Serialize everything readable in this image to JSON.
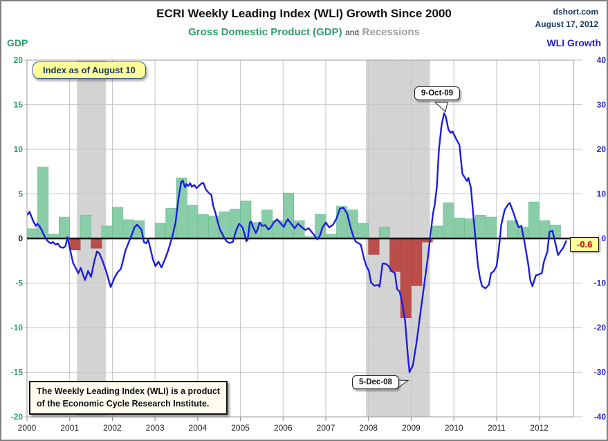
{
  "header": {
    "title": "ECRI Weekly Leading Index (WLI) Growth Since 2000",
    "source": "dshort.com",
    "date": "August 17, 2012",
    "subtitle_gdp": "Gross Domestic Product (GDP)",
    "subtitle_and": "and",
    "subtitle_recessions": "Recessions",
    "left_axis_title": "GDP",
    "right_axis_title": "WLI Growth"
  },
  "annotations": {
    "index_note": "Index as of August 10",
    "peak_label": "9-Oct-09",
    "trough_label": "5-Dec-08",
    "last_value_label": "-0.6",
    "footnote_line1": "The Weekly Leading Index (WLI) is a product",
    "footnote_line2": "of the Economic Cycle Research Institute."
  },
  "colors": {
    "gdp_text_green": "#2E9E68",
    "gdp_bar_green": "#7DC8A0",
    "gdp_bar_green_edge": "#69B890",
    "gdp_bar_red": "#C0504D",
    "gdp_bar_red_edge": "#A8423F",
    "wli_line_blue": "#1C1CE0",
    "wli_text_blue": "#2424CC",
    "navy_text": "#17375E",
    "recession_band": "#D6D6D6",
    "recession_band_dot": "#C9C9C9",
    "grid": "#C3C3C3",
    "zero_line": "#000000",
    "note_bg": "#FFFF99",
    "last_value_text": "#CC0000"
  },
  "chart_data": {
    "type": "bar+line (dual axis) with recession bands",
    "title": "ECRI Weekly Leading Index (WLI) Growth Since 2000",
    "x_range": [
      2000,
      2012.8
    ],
    "x_ticks": [
      2000,
      2001,
      2002,
      2003,
      2004,
      2005,
      2006,
      2007,
      2008,
      2009,
      2010,
      2011,
      2012
    ],
    "gdp_axis": {
      "label": "GDP",
      "min": -20,
      "max": 20,
      "ticks": [
        20,
        15,
        10,
        5,
        0,
        -5,
        -10,
        -15,
        -20
      ]
    },
    "wli_axis": {
      "label": "WLI Growth",
      "min": -40,
      "max": 40,
      "ticks": [
        40,
        30,
        20,
        10,
        0,
        -10,
        -20,
        -30,
        -40
      ]
    },
    "gdp_quarterly": {
      "start_year": 2000,
      "per_year": 4,
      "values": [
        1.1,
        8.0,
        0.5,
        2.4,
        -1.3,
        2.6,
        -1.1,
        1.4,
        3.5,
        2.1,
        2.0,
        0.1,
        1.7,
        3.4,
        6.8,
        3.7,
        2.7,
        2.5,
        3.0,
        3.3,
        4.2,
        1.8,
        3.2,
        2.0,
        5.1,
        2.0,
        0.2,
        2.7,
        0.5,
        3.6,
        3.2,
        1.7,
        -1.8,
        1.3,
        -3.7,
        -8.9,
        -5.3,
        -0.4,
        1.4,
        4.0,
        2.3,
        2.2,
        2.6,
        2.4,
        0.1,
        2.0,
        1.3,
        4.1,
        2.0,
        1.5
      ]
    },
    "recessions": [
      [
        2001.17,
        2001.85
      ],
      [
        2007.94,
        2009.44
      ]
    ],
    "wli_line": [
      [
        2000.02,
        5.4
      ],
      [
        2000.06,
        6.0
      ],
      [
        2000.1,
        5.0
      ],
      [
        2000.16,
        3.6
      ],
      [
        2000.21,
        2.8
      ],
      [
        2000.24,
        3.3
      ],
      [
        2000.29,
        2.8
      ],
      [
        2000.34,
        2.0
      ],
      [
        2000.4,
        0.7
      ],
      [
        2000.46,
        -0.3
      ],
      [
        2000.51,
        -0.8
      ],
      [
        2000.56,
        -1.1
      ],
      [
        2000.61,
        -0.8
      ],
      [
        2000.67,
        -1.4
      ],
      [
        2000.72,
        -1.1
      ],
      [
        2000.78,
        -1.9
      ],
      [
        2000.84,
        -2.1
      ],
      [
        2000.9,
        -1.8
      ],
      [
        2000.95,
        0.3
      ],
      [
        2001.02,
        -3.0
      ],
      [
        2001.08,
        -5.5
      ],
      [
        2001.16,
        -7.0
      ],
      [
        2001.2,
        -7.8
      ],
      [
        2001.26,
        -6.6
      ],
      [
        2001.31,
        -8.1
      ],
      [
        2001.36,
        -9.3
      ],
      [
        2001.43,
        -7.3
      ],
      [
        2001.5,
        -8.6
      ],
      [
        2001.58,
        -5.0
      ],
      [
        2001.64,
        -2.9
      ],
      [
        2001.7,
        -3.4
      ],
      [
        2001.78,
        -5.3
      ],
      [
        2001.86,
        -7.5
      ],
      [
        2001.96,
        -10.9
      ],
      [
        2002.06,
        -8.6
      ],
      [
        2002.13,
        -7.5
      ],
      [
        2002.2,
        -6.8
      ],
      [
        2002.31,
        -2.6
      ],
      [
        2002.42,
        0.0
      ],
      [
        2002.52,
        2.5
      ],
      [
        2002.58,
        3.1
      ],
      [
        2002.68,
        2.0
      ],
      [
        2002.74,
        -0.8
      ],
      [
        2002.79,
        -1.1
      ],
      [
        2002.84,
        -0.3
      ],
      [
        2002.95,
        -4.7
      ],
      [
        2003.01,
        -6.2
      ],
      [
        2003.08,
        -5.2
      ],
      [
        2003.15,
        -6.5
      ],
      [
        2003.23,
        -4.7
      ],
      [
        2003.31,
        -2.6
      ],
      [
        2003.4,
        0.2
      ],
      [
        2003.48,
        3.6
      ],
      [
        2003.55,
        9.0
      ],
      [
        2003.61,
        12.6
      ],
      [
        2003.65,
        13.0
      ],
      [
        2003.7,
        11.5
      ],
      [
        2003.74,
        12.2
      ],
      [
        2003.78,
        11.8
      ],
      [
        2003.82,
        12.4
      ],
      [
        2003.86,
        11.6
      ],
      [
        2003.92,
        12.0
      ],
      [
        2003.97,
        11.3
      ],
      [
        2004.03,
        11.8
      ],
      [
        2004.08,
        12.3
      ],
      [
        2004.13,
        12.5
      ],
      [
        2004.19,
        11.0
      ],
      [
        2004.26,
        10.2
      ],
      [
        2004.32,
        9.8
      ],
      [
        2004.36,
        7.4
      ],
      [
        2004.42,
        5.6
      ],
      [
        2004.47,
        3.6
      ],
      [
        2004.52,
        2.0
      ],
      [
        2004.57,
        1.1
      ],
      [
        2004.62,
        0.2
      ],
      [
        2004.67,
        -0.6
      ],
      [
        2004.74,
        -1.0
      ],
      [
        2004.82,
        -0.8
      ],
      [
        2004.9,
        1.8
      ],
      [
        2004.97,
        3.3
      ],
      [
        2005.05,
        2.5
      ],
      [
        2005.11,
        0.5
      ],
      [
        2005.14,
        -0.6
      ],
      [
        2005.17,
        -0.3
      ],
      [
        2005.22,
        3.6
      ],
      [
        2005.25,
        3.8
      ],
      [
        2005.3,
        2.5
      ],
      [
        2005.36,
        1.2
      ],
      [
        2005.4,
        2.0
      ],
      [
        2005.45,
        3.6
      ],
      [
        2005.51,
        2.8
      ],
      [
        2005.58,
        3.0
      ],
      [
        2005.66,
        2.0
      ],
      [
        2005.72,
        2.6
      ],
      [
        2005.78,
        3.6
      ],
      [
        2005.86,
        4.3
      ],
      [
        2005.94,
        3.4
      ],
      [
        2006.02,
        2.6
      ],
      [
        2006.07,
        3.7
      ],
      [
        2006.11,
        4.3
      ],
      [
        2006.19,
        3.3
      ],
      [
        2006.27,
        2.3
      ],
      [
        2006.35,
        3.3
      ],
      [
        2006.44,
        2.5
      ],
      [
        2006.52,
        1.9
      ],
      [
        2006.6,
        2.3
      ],
      [
        2006.71,
        1.0
      ],
      [
        2006.8,
        -0.2
      ],
      [
        2006.86,
        0.6
      ],
      [
        2006.92,
        2.4
      ],
      [
        2007.0,
        3.6
      ],
      [
        2007.08,
        2.5
      ],
      [
        2007.17,
        3.1
      ],
      [
        2007.25,
        4.5
      ],
      [
        2007.33,
        6.7
      ],
      [
        2007.41,
        6.9
      ],
      [
        2007.5,
        5.6
      ],
      [
        2007.58,
        2.5
      ],
      [
        2007.66,
        0.0
      ],
      [
        2007.71,
        -0.8
      ],
      [
        2007.77,
        -1.1
      ],
      [
        2007.82,
        -1.4
      ],
      [
        2007.9,
        -4.7
      ],
      [
        2007.95,
        -6.2
      ],
      [
        2008.01,
        -7.3
      ],
      [
        2008.06,
        -9.9
      ],
      [
        2008.14,
        -10.6
      ],
      [
        2008.22,
        -10.4
      ],
      [
        2008.26,
        -10.8
      ],
      [
        2008.33,
        -5.6
      ],
      [
        2008.41,
        -5.7
      ],
      [
        2008.47,
        -6.2
      ],
      [
        2008.54,
        -7.3
      ],
      [
        2008.62,
        -7.8
      ],
      [
        2008.67,
        -11.4
      ],
      [
        2008.73,
        -11.9
      ],
      [
        2008.79,
        -14.5
      ],
      [
        2008.86,
        -18.7
      ],
      [
        2008.92,
        -26.0
      ],
      [
        2008.96,
        -30.0
      ],
      [
        2009.04,
        -28.5
      ],
      [
        2009.13,
        -23.0
      ],
      [
        2009.22,
        -16.5
      ],
      [
        2009.31,
        -10.0
      ],
      [
        2009.4,
        -3.5
      ],
      [
        2009.46,
        1.5
      ],
      [
        2009.51,
        5.5
      ],
      [
        2009.55,
        7.5
      ],
      [
        2009.6,
        11.5
      ],
      [
        2009.65,
        20.0
      ],
      [
        2009.71,
        25.3
      ],
      [
        2009.77,
        28.1
      ],
      [
        2009.81,
        27.3
      ],
      [
        2009.87,
        24.5
      ],
      [
        2009.92,
        23.7
      ],
      [
        2009.97,
        24.0
      ],
      [
        2010.06,
        22.2
      ],
      [
        2010.13,
        21.0
      ],
      [
        2010.2,
        14.5
      ],
      [
        2010.26,
        13.6
      ],
      [
        2010.31,
        12.9
      ],
      [
        2010.34,
        13.6
      ],
      [
        2010.4,
        11.3
      ],
      [
        2010.46,
        4.6
      ],
      [
        2010.51,
        -0.5
      ],
      [
        2010.56,
        -5.7
      ],
      [
        2010.61,
        -8.8
      ],
      [
        2010.66,
        -10.7
      ],
      [
        2010.74,
        -11.2
      ],
      [
        2010.82,
        -10.4
      ],
      [
        2010.87,
        -7.8
      ],
      [
        2010.94,
        -7.3
      ],
      [
        2011.0,
        -6.2
      ],
      [
        2011.05,
        -2.6
      ],
      [
        2011.11,
        3.1
      ],
      [
        2011.19,
        6.4
      ],
      [
        2011.26,
        7.5
      ],
      [
        2011.31,
        8.0
      ],
      [
        2011.39,
        5.9
      ],
      [
        2011.47,
        3.6
      ],
      [
        2011.52,
        2.5
      ],
      [
        2011.58,
        2.8
      ],
      [
        2011.66,
        -1.1
      ],
      [
        2011.74,
        -5.7
      ],
      [
        2011.79,
        -9.4
      ],
      [
        2011.84,
        -10.7
      ],
      [
        2011.92,
        -8.3
      ],
      [
        2011.98,
        -8.1
      ],
      [
        2012.06,
        -7.8
      ],
      [
        2012.11,
        -5.2
      ],
      [
        2012.19,
        -2.9
      ],
      [
        2012.24,
        1.5
      ],
      [
        2012.31,
        1.7
      ],
      [
        2012.39,
        -1.6
      ],
      [
        2012.44,
        -3.7
      ],
      [
        2012.52,
        -2.6
      ],
      [
        2012.56,
        -2.1
      ],
      [
        2012.63,
        -0.6
      ]
    ],
    "callout_anchors": {
      "peak": {
        "x": 2009.77,
        "y": 28.1
      },
      "trough": {
        "x": 2008.96,
        "y": -30.0
      },
      "last": {
        "x": 2012.63,
        "y": -0.6
      }
    },
    "legend_position": "none",
    "grid": "on"
  }
}
